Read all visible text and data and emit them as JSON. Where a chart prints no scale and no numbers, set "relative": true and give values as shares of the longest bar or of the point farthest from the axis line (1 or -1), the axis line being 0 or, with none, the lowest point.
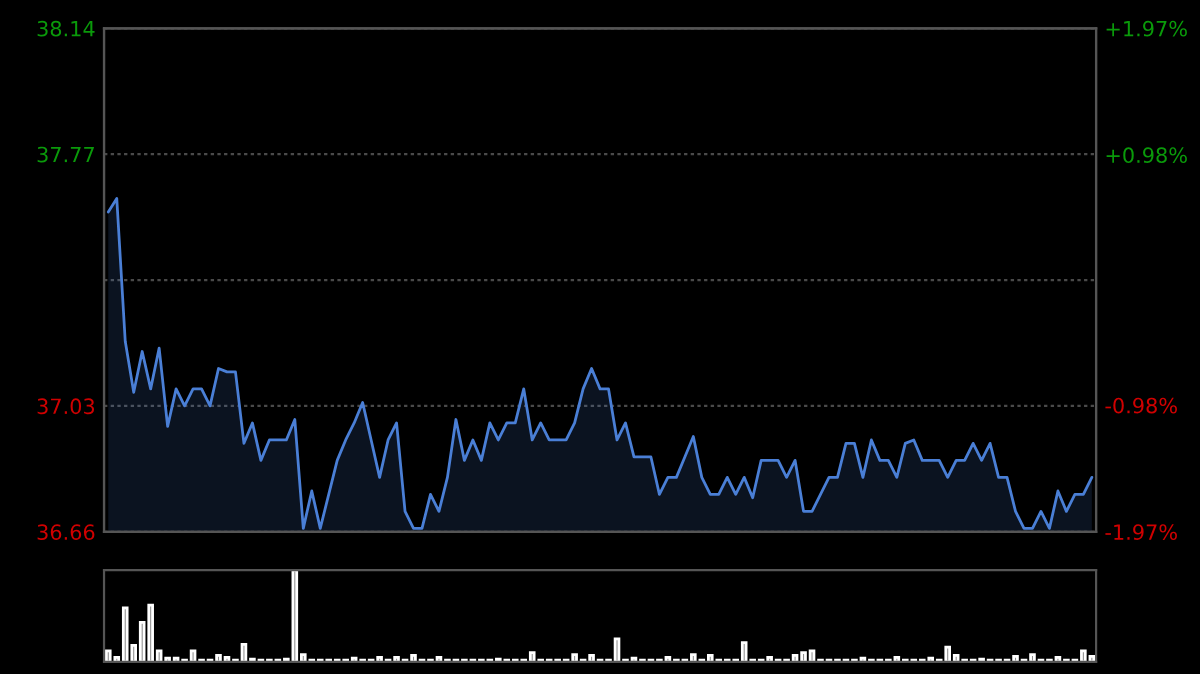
{
  "chart_data": [
    {
      "type": "area",
      "categories": [
        null,
        null,
        null,
        null,
        null,
        null,
        null,
        null,
        null,
        null,
        null,
        null,
        null,
        null,
        null,
        null,
        null,
        null,
        null,
        null,
        null,
        null,
        null,
        null,
        null,
        null,
        null,
        null,
        null,
        null,
        null,
        null,
        null,
        null,
        null,
        null,
        null,
        null,
        null,
        null,
        null,
        null,
        null,
        null,
        null,
        null,
        null,
        null,
        null,
        null,
        null,
        null,
        null,
        null,
        null,
        null,
        null,
        null,
        null,
        null,
        null,
        null,
        null,
        null,
        null,
        null,
        null,
        null,
        null,
        null,
        null,
        null,
        null,
        null,
        null,
        null,
        null,
        null,
        null,
        null,
        null,
        null,
        null,
        null,
        null,
        null,
        null,
        null,
        null,
        null,
        null,
        null,
        null,
        null,
        null,
        null,
        null,
        null,
        null,
        null,
        null,
        null,
        null,
        null,
        null,
        null,
        null,
        null,
        null,
        null,
        null,
        null,
        null,
        null,
        null,
        null,
        null
      ],
      "ylim": [
        36.66,
        38.14
      ],
      "yticks": [
        36.66,
        37.03,
        {
          "value": 37.4,
          "label": null
        },
        37.77,
        38.14
      ],
      "y2lim": [
        -1.97,
        1.97
      ],
      "y2ticks": [
        {
          "value": -1.97,
          "label": "-1.97%"
        },
        {
          "value": -0.98,
          "label": "-0.98%"
        },
        {
          "value": 0,
          "label": null
        },
        {
          "value": 0.98,
          "label": "+0.98%"
        },
        {
          "value": 1.97,
          "label": "+1.97%"
        }
      ],
      "grid": "y",
      "tick_labels": "y",
      "series": [
        {
          "color": "#4a7fd6",
          "values": [
            37.6,
            37.64,
            37.22,
            37.07,
            37.19,
            37.08,
            37.2,
            36.97,
            37.08,
            37.03,
            37.08,
            37.08,
            37.03,
            37.14,
            37.13,
            37.13,
            36.92,
            36.98,
            36.87,
            36.93,
            36.93,
            36.93,
            36.99,
            36.67,
            36.78,
            36.67,
            36.77,
            36.87,
            36.93,
            36.98,
            37.04,
            36.93,
            36.82,
            36.93,
            36.98,
            36.72,
            36.67,
            36.67,
            36.77,
            36.72,
            36.82,
            36.99,
            36.87,
            36.93,
            36.87,
            36.98,
            36.93,
            36.98,
            36.98,
            37.08,
            36.93,
            36.98,
            36.93,
            36.93,
            36.93,
            36.98,
            37.08,
            37.14,
            37.08,
            37.08,
            36.93,
            36.98,
            36.88,
            36.88,
            36.88,
            36.77,
            36.82,
            36.82,
            36.88,
            36.94,
            36.82,
            36.77,
            36.77,
            36.82,
            36.77,
            36.82,
            36.76,
            36.87,
            36.87,
            36.87,
            36.82,
            36.87,
            36.72,
            36.72,
            36.77,
            36.82,
            36.82,
            36.92,
            36.92,
            36.82,
            36.93,
            36.87,
            36.87,
            36.82,
            36.92,
            36.93,
            36.87,
            36.87,
            36.87,
            36.82,
            36.87,
            36.87,
            36.92,
            36.87,
            36.92,
            36.82,
            36.82,
            36.72,
            36.67,
            36.67,
            36.72,
            36.67,
            36.78,
            36.72,
            36.77,
            36.77,
            36.82
          ]
        }
      ]
    },
    {
      "type": "bar",
      "relative": true,
      "tick_labels": false,
      "categories": [
        null,
        null,
        null,
        null,
        null,
        null,
        null,
        null,
        null,
        null,
        null,
        null,
        null,
        null,
        null,
        null,
        null,
        null,
        null,
        null,
        null,
        null,
        null,
        null,
        null,
        null,
        null,
        null,
        null,
        null,
        null,
        null,
        null,
        null,
        null,
        null,
        null,
        null,
        null,
        null,
        null,
        null,
        null,
        null,
        null,
        null,
        null,
        null,
        null,
        null,
        null,
        null,
        null,
        null,
        null,
        null,
        null,
        null,
        null,
        null,
        null,
        null,
        null,
        null,
        null,
        null,
        null,
        null,
        null,
        null,
        null,
        null,
        null,
        null,
        null,
        null,
        null,
        null,
        null,
        null,
        null,
        null,
        null,
        null,
        null,
        null,
        null,
        null,
        null,
        null,
        null,
        null,
        null,
        null,
        null,
        null,
        null,
        null,
        null,
        null,
        null,
        null,
        null,
        null,
        null,
        null,
        null,
        null,
        null,
        null,
        null,
        null,
        null,
        null,
        null,
        null,
        null
      ],
      "series": [
        {
          "color": "#8c8c8c",
          "values": [
            0.12,
            0.05,
            0.59,
            0.18,
            0.43,
            0.62,
            0.12,
            0.04,
            0.04,
            0.02,
            0.12,
            0.02,
            0.02,
            0.07,
            0.05,
            0.02,
            0.19,
            0.03,
            0.02,
            0.02,
            0.02,
            0.03,
            1.0,
            0.08,
            0.02,
            0.02,
            0.02,
            0.02,
            0.02,
            0.04,
            0.02,
            0.02,
            0.05,
            0.02,
            0.05,
            0.02,
            0.07,
            0.02,
            0.02,
            0.05,
            0.02,
            0.02,
            0.02,
            0.02,
            0.02,
            0.02,
            0.03,
            0.02,
            0.02,
            0.02,
            0.1,
            0.02,
            0.02,
            0.02,
            0.02,
            0.08,
            0.02,
            0.07,
            0.02,
            0.02,
            0.25,
            0.02,
            0.04,
            0.02,
            0.02,
            0.02,
            0.05,
            0.02,
            0.02,
            0.08,
            0.02,
            0.07,
            0.02,
            0.02,
            0.02,
            0.21,
            0.02,
            0.02,
            0.05,
            0.02,
            0.02,
            0.07,
            0.1,
            0.12,
            0.02,
            0.02,
            0.02,
            0.02,
            0.02,
            0.04,
            0.02,
            0.02,
            0.02,
            0.05,
            0.02,
            0.02,
            0.02,
            0.04,
            0.02,
            0.16,
            0.07,
            0.02,
            0.02,
            0.03,
            0.02,
            0.02,
            0.02,
            0.06,
            0.02,
            0.08,
            0.02,
            0.02,
            0.05,
            0.02,
            0.02,
            0.12,
            0.06
          ]
        }
      ]
    }
  ]
}
